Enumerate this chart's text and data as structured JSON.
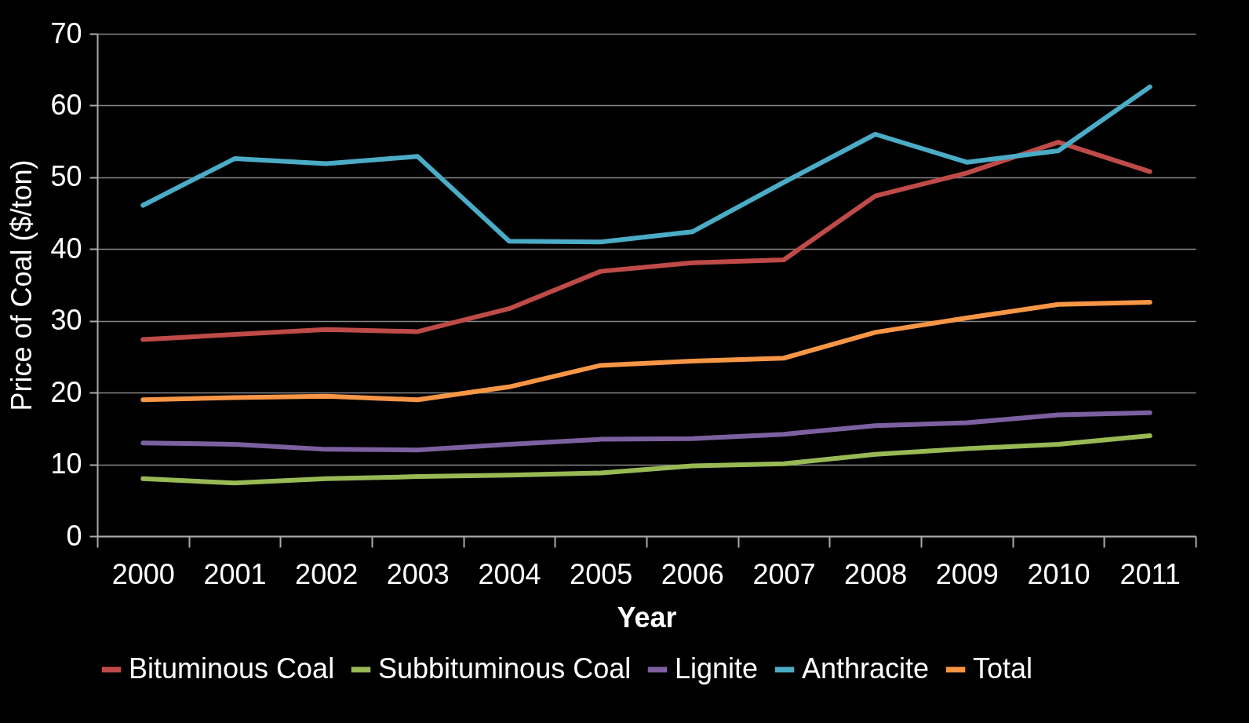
{
  "chart_data": {
    "type": "line",
    "xlabel": "Year",
    "ylabel": "Price of Coal ($/ton)",
    "categories": [
      "2000",
      "2001",
      "2002",
      "2003",
      "2004",
      "2005",
      "2006",
      "2007",
      "2008",
      "2009",
      "2010",
      "2011"
    ],
    "series": [
      {
        "name": "Bituminous Coal",
        "color": "#be4b48",
        "values": [
          27.4,
          28.1,
          28.8,
          28.5,
          31.7,
          36.9,
          38.1,
          38.5,
          47.4,
          50.6,
          54.9,
          50.8
        ]
      },
      {
        "name": "Subbituminous Coal",
        "color": "#98b954",
        "values": [
          8.0,
          7.4,
          8.0,
          8.3,
          8.5,
          8.8,
          9.8,
          10.1,
          11.4,
          12.2,
          12.8,
          14.0
        ]
      },
      {
        "name": "Lignite",
        "color": "#7d60a0",
        "values": [
          13.0,
          12.8,
          12.1,
          12.0,
          12.8,
          13.5,
          13.6,
          14.2,
          15.4,
          15.8,
          16.9,
          17.2
        ]
      },
      {
        "name": "Anthracite",
        "color": "#4bacc6",
        "values": [
          46.1,
          52.6,
          51.9,
          52.9,
          41.1,
          41.0,
          42.4,
          49.3,
          56.0,
          52.1,
          53.7,
          62.6
        ]
      },
      {
        "name": "Total",
        "color": "#f79646",
        "values": [
          19.0,
          19.3,
          19.5,
          19.0,
          20.8,
          23.8,
          24.4,
          24.8,
          28.4,
          30.4,
          32.3,
          32.6
        ]
      }
    ],
    "ylim": [
      0,
      70
    ],
    "yticks": [
      0,
      10,
      20,
      30,
      40,
      50,
      60,
      70
    ],
    "grid": "y",
    "legend": "bottom",
    "marker": "none",
    "line_style": "solid"
  }
}
